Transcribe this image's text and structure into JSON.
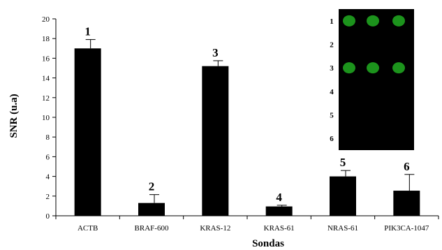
{
  "chart_data": {
    "type": "bar",
    "title": "",
    "xlabel": "Sondas",
    "ylabel": "SNR (u.a)",
    "ylim": [
      0,
      20
    ],
    "yticks": [
      "0",
      "2",
      "4",
      "6",
      "8",
      "10",
      "12",
      "14",
      "16",
      "18",
      "20"
    ],
    "grid": false,
    "categories": [
      "ACTB",
      "BRAF-600",
      "KRAS-12",
      "KRAS-61",
      "NRAS-61",
      "PIK3CA-1047"
    ],
    "values": [
      17.0,
      1.3,
      15.2,
      0.95,
      4.0,
      2.55
    ],
    "errors": [
      0.9,
      0.85,
      0.55,
      0.12,
      0.6,
      1.65
    ],
    "bar_labels": [
      "1",
      "2",
      "3",
      "4",
      "5",
      "6"
    ],
    "bar_color": "#000000",
    "inset": {
      "row_labels": [
        "1",
        "2",
        "3",
        "4",
        "5",
        "6"
      ],
      "background": "#000000",
      "spot_color": "#1fa31f",
      "spot_rows": [
        1,
        3
      ],
      "spots_per_row": 3
    }
  }
}
